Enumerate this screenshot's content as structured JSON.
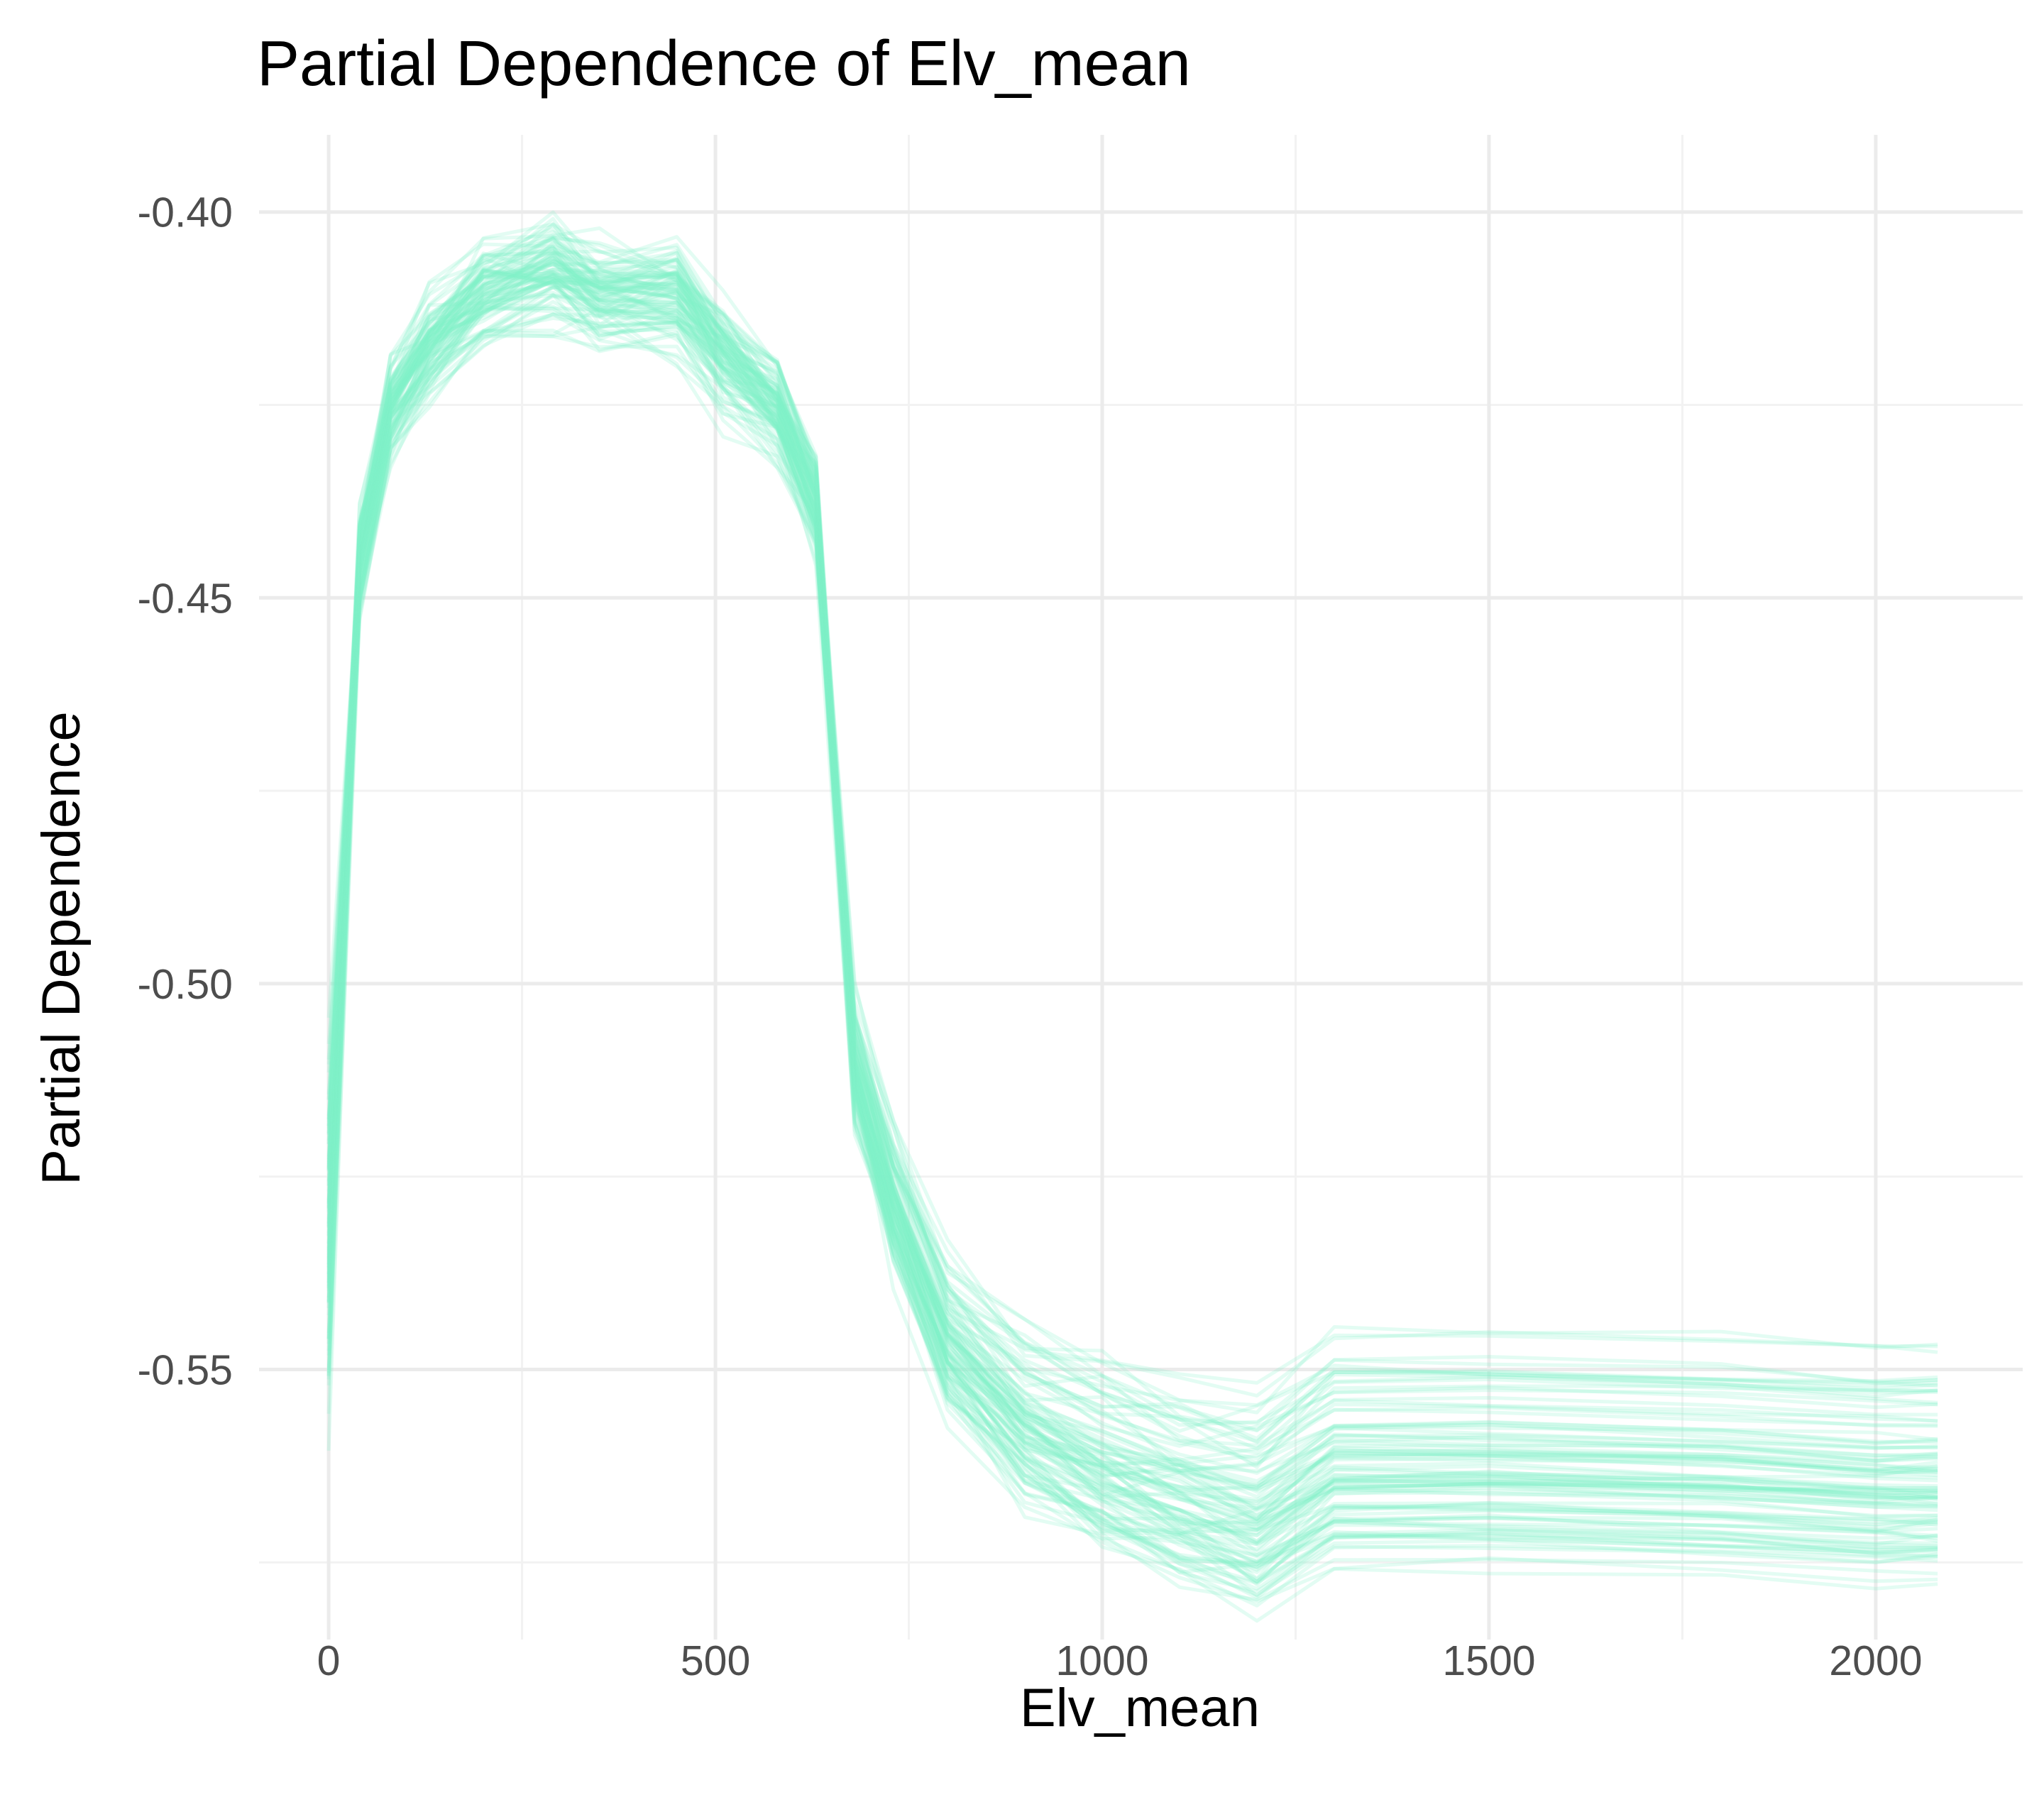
{
  "chart_data": {
    "type": "line",
    "title": "Partial Dependence of Elv_mean",
    "xlabel": "Elv_mean",
    "ylabel": "Partial Dependence",
    "xlim": [
      -90,
      2190
    ],
    "ylim": [
      -0.585,
      -0.39
    ],
    "x_ticks": [
      0,
      500,
      1000,
      1500,
      2000
    ],
    "x_tick_labels": [
      "0",
      "500",
      "1000",
      "1500",
      "2000"
    ],
    "y_ticks": [
      -0.55,
      -0.5,
      -0.45,
      -0.4
    ],
    "y_tick_labels": [
      "-0.55",
      "-0.50",
      "-0.45",
      "-0.40"
    ],
    "x_minor": [
      250,
      750,
      1250,
      1750
    ],
    "y_minor": [
      -0.575,
      -0.525,
      -0.475,
      -0.425
    ],
    "grid": true,
    "legend": "none",
    "line_color": "#7ff2c8",
    "x": [
      0,
      40,
      80,
      130,
      200,
      290,
      350,
      450,
      510,
      580,
      630,
      680,
      730,
      800,
      900,
      1000,
      1100,
      1200,
      1300,
      1500,
      1800,
      2000,
      2080
    ],
    "center_curve": [
      -0.53,
      -0.445,
      -0.425,
      -0.417,
      -0.41,
      -0.407,
      -0.41,
      -0.41,
      -0.418,
      -0.425,
      -0.437,
      -0.51,
      -0.528,
      -0.546,
      -0.557,
      -0.562,
      -0.566,
      -0.569,
      -0.562,
      -0.562,
      -0.563,
      -0.564,
      -0.564
    ],
    "series_count": 100
  }
}
